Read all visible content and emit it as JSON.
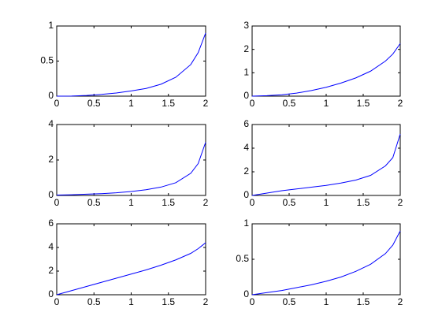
{
  "chart_data": [
    {
      "type": "line",
      "x": [
        0,
        0.2,
        0.4,
        0.6,
        0.8,
        1.0,
        1.2,
        1.4,
        1.6,
        1.8,
        1.9,
        2.0
      ],
      "values": [
        0,
        0.002,
        0.01,
        0.025,
        0.045,
        0.075,
        0.11,
        0.17,
        0.27,
        0.45,
        0.62,
        0.9
      ],
      "color": "#0000ff",
      "xlim": [
        0,
        2
      ],
      "ylim": [
        0,
        1
      ],
      "xticks": [
        0,
        0.5,
        1,
        1.5,
        2
      ],
      "yticks": [
        0,
        0.5,
        1
      ]
    },
    {
      "type": "line",
      "x": [
        0,
        0.2,
        0.4,
        0.6,
        0.8,
        1.0,
        1.2,
        1.4,
        1.6,
        1.8,
        1.9,
        2.0
      ],
      "values": [
        0,
        0.02,
        0.06,
        0.13,
        0.24,
        0.38,
        0.56,
        0.78,
        1.07,
        1.5,
        1.8,
        2.25
      ],
      "color": "#0000ff",
      "xlim": [
        0,
        2
      ],
      "ylim": [
        0,
        3
      ],
      "xticks": [
        0,
        0.5,
        1,
        1.5,
        2
      ],
      "yticks": [
        0,
        1,
        2,
        3
      ]
    },
    {
      "type": "line",
      "x": [
        0,
        0.2,
        0.4,
        0.6,
        0.8,
        1.0,
        1.2,
        1.4,
        1.6,
        1.8,
        1.9,
        2.0
      ],
      "values": [
        0.02,
        0.04,
        0.07,
        0.1,
        0.15,
        0.22,
        0.32,
        0.47,
        0.72,
        1.25,
        1.8,
        3.0
      ],
      "color": "#0000ff",
      "xlim": [
        0,
        2
      ],
      "ylim": [
        0,
        4
      ],
      "xticks": [
        0,
        0.5,
        1,
        1.5,
        2
      ],
      "yticks": [
        0,
        2,
        4
      ]
    },
    {
      "type": "line",
      "x": [
        0,
        0.2,
        0.4,
        0.6,
        0.8,
        1.0,
        1.2,
        1.4,
        1.6,
        1.8,
        1.9,
        2.0
      ],
      "values": [
        0,
        0.2,
        0.4,
        0.55,
        0.7,
        0.85,
        1.05,
        1.3,
        1.7,
        2.5,
        3.2,
        5.2
      ],
      "color": "#0000ff",
      "xlim": [
        0,
        2
      ],
      "ylim": [
        0,
        6
      ],
      "xticks": [
        0,
        0.5,
        1,
        1.5,
        2
      ],
      "yticks": [
        0,
        2,
        4,
        6
      ]
    },
    {
      "type": "line",
      "x": [
        0,
        0.2,
        0.4,
        0.6,
        0.8,
        1.0,
        1.2,
        1.4,
        1.6,
        1.8,
        1.9,
        2.0
      ],
      "values": [
        0,
        0.35,
        0.7,
        1.05,
        1.4,
        1.75,
        2.1,
        2.5,
        2.95,
        3.5,
        3.9,
        4.4
      ],
      "color": "#0000ff",
      "xlim": [
        0,
        2
      ],
      "ylim": [
        0,
        6
      ],
      "xticks": [
        0,
        0.5,
        1,
        1.5,
        2
      ],
      "yticks": [
        0,
        2,
        4,
        6
      ]
    },
    {
      "type": "line",
      "x": [
        0,
        0.2,
        0.4,
        0.6,
        0.8,
        1.0,
        1.2,
        1.4,
        1.6,
        1.8,
        1.9,
        2.0
      ],
      "values": [
        0,
        0.03,
        0.06,
        0.1,
        0.14,
        0.19,
        0.25,
        0.33,
        0.43,
        0.58,
        0.7,
        0.9
      ],
      "color": "#0000ff",
      "xlim": [
        0,
        2
      ],
      "ylim": [
        0,
        1
      ],
      "xticks": [
        0,
        0.5,
        1,
        1.5,
        2
      ],
      "yticks": [
        0,
        0.5,
        1
      ]
    }
  ]
}
